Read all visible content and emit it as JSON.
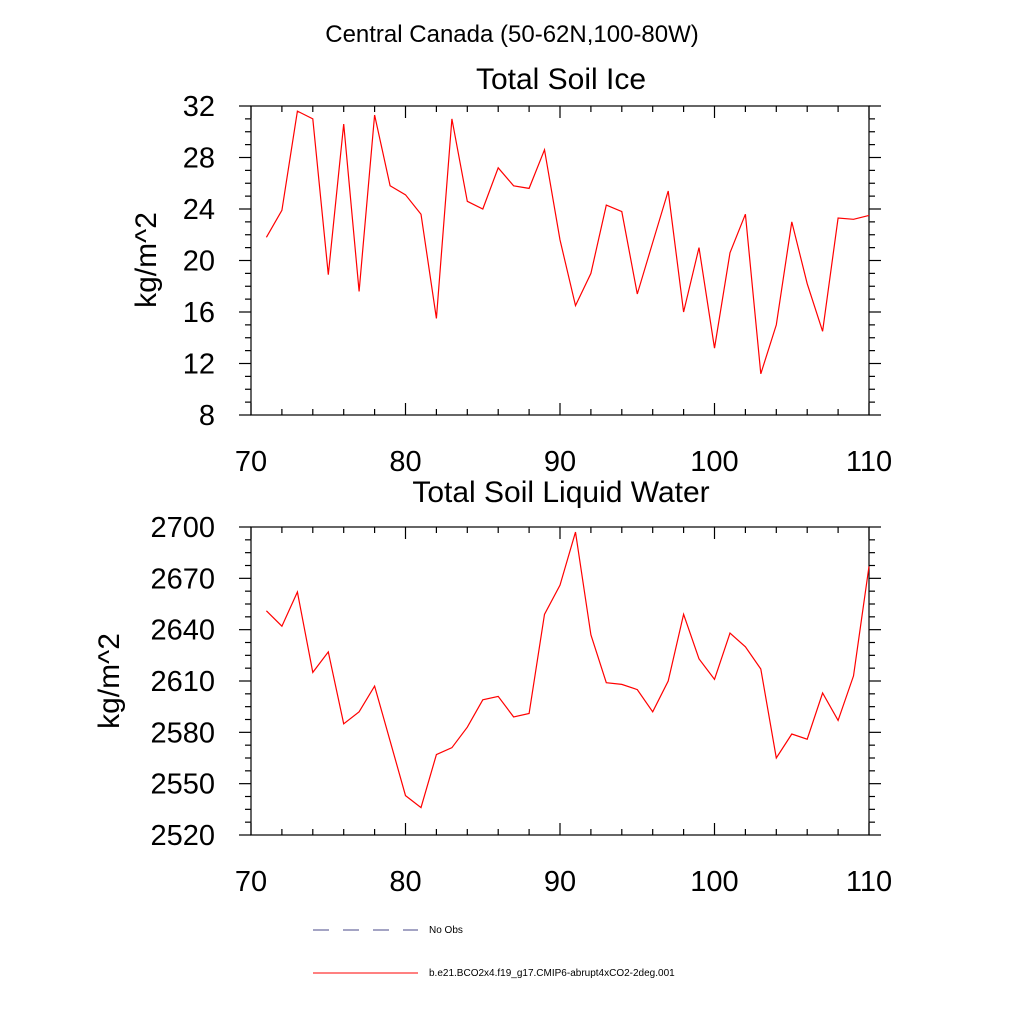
{
  "page_title": "Central Canada (50-62N,100-80W)",
  "colors": {
    "model_line": "#ff0000",
    "obs_line": "#4a4a8a",
    "axes": "#000000"
  },
  "chart_data": [
    {
      "type": "line",
      "title": "Total Soil Ice",
      "xlabel": "",
      "ylabel": "kg/m^2",
      "xlim": [
        70,
        110
      ],
      "ylim": [
        8,
        32
      ],
      "x_ticks": [
        70,
        80,
        90,
        100,
        110
      ],
      "y_ticks": [
        8,
        12,
        16,
        20,
        24,
        28,
        32
      ],
      "grid": false,
      "series": [
        {
          "name": "b.e21.BCO2x4.f19_g17.CMIP6-abrupt4xCO2-2deg.001",
          "x": [
            71,
            72,
            73,
            74,
            75,
            76,
            77,
            78,
            79,
            80,
            81,
            82,
            83,
            84,
            85,
            86,
            87,
            88,
            89,
            90,
            91,
            92,
            93,
            94,
            95,
            96,
            97,
            98,
            99,
            100,
            101,
            102,
            103,
            104,
            105,
            106,
            107,
            108,
            109,
            110
          ],
          "values": [
            21.8,
            23.9,
            31.6,
            31.0,
            18.9,
            30.6,
            17.6,
            31.3,
            25.8,
            25.1,
            23.6,
            15.5,
            31.0,
            24.6,
            24.0,
            27.2,
            25.8,
            25.6,
            28.6,
            21.6,
            16.5,
            19.0,
            24.3,
            23.8,
            17.4,
            21.4,
            25.4,
            16.0,
            21.0,
            13.2,
            20.6,
            23.6,
            11.2,
            15.0,
            23.0,
            18.2,
            14.5,
            23.3,
            23.2,
            23.5
          ]
        }
      ]
    },
    {
      "type": "line",
      "title": "Total Soil Liquid Water",
      "xlabel": "",
      "ylabel": "kg/m^2",
      "xlim": [
        70,
        110
      ],
      "ylim": [
        2520,
        2700
      ],
      "x_ticks": [
        70,
        80,
        90,
        100,
        110
      ],
      "y_ticks": [
        2520,
        2550,
        2580,
        2610,
        2640,
        2670,
        2700
      ],
      "grid": false,
      "series": [
        {
          "name": "b.e21.BCO2x4.f19_g17.CMIP6-abrupt4xCO2-2deg.001",
          "x": [
            71,
            72,
            73,
            74,
            75,
            76,
            77,
            78,
            79,
            80,
            81,
            82,
            83,
            84,
            85,
            86,
            87,
            88,
            89,
            90,
            91,
            92,
            93,
            94,
            95,
            96,
            97,
            98,
            99,
            100,
            101,
            102,
            103,
            104,
            105,
            106,
            107,
            108,
            109,
            110
          ],
          "values": [
            2651,
            2642,
            2662,
            2615,
            2627,
            2585,
            2592,
            2607,
            2575,
            2543,
            2536,
            2567,
            2571,
            2583,
            2599,
            2601,
            2589,
            2591,
            2649,
            2666,
            2697,
            2637,
            2609,
            2608,
            2605,
            2592,
            2610,
            2649,
            2623,
            2611,
            2638,
            2630,
            2617,
            2565,
            2579,
            2576,
            2603,
            2587,
            2613,
            2677
          ]
        }
      ]
    }
  ],
  "legend": {
    "items": [
      {
        "label": "No Obs",
        "style": "dashed",
        "color": "#4a4a8a"
      },
      {
        "label": "b.e21.BCO2x4.f19_g17.CMIP6-abrupt4xCO2-2deg.001",
        "style": "solid",
        "color": "#ff0000"
      }
    ]
  }
}
